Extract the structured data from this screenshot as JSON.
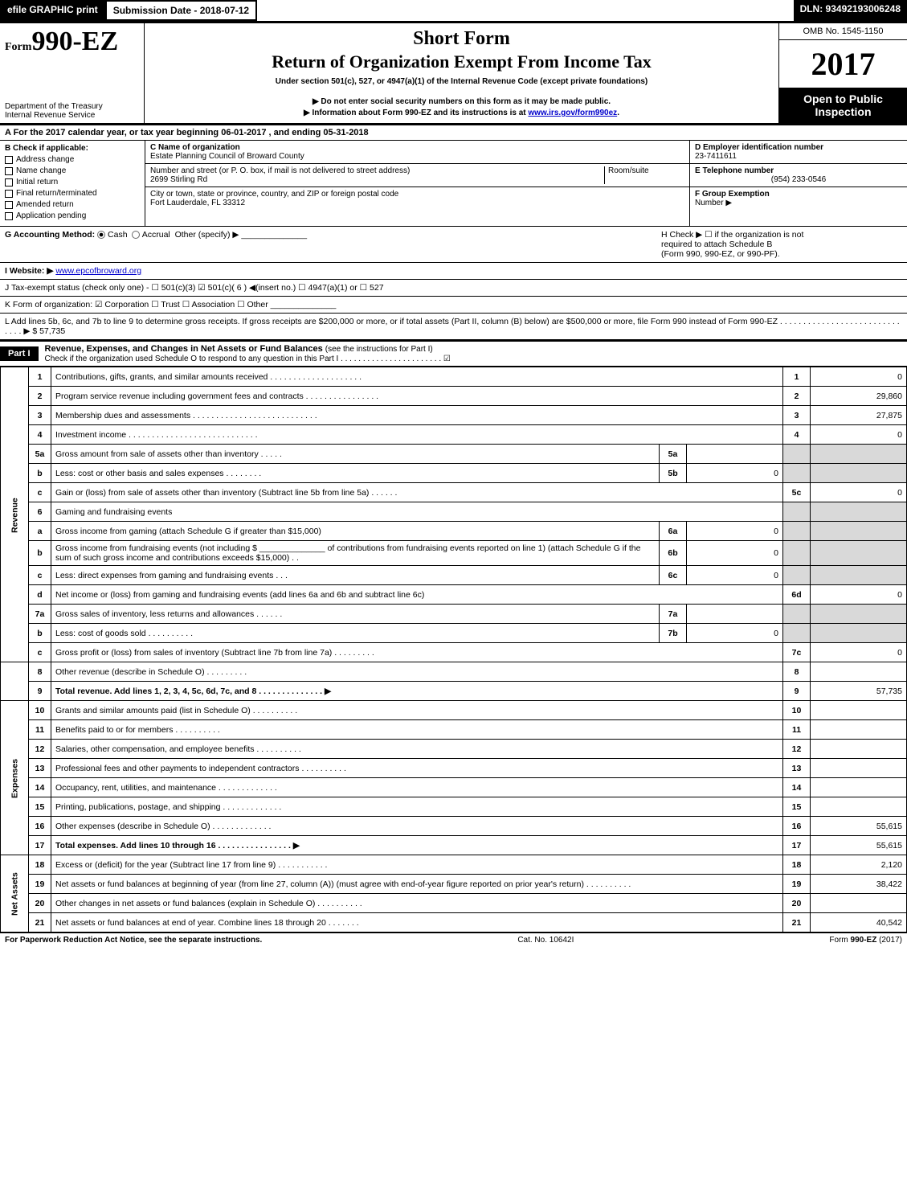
{
  "top": {
    "efile": "efile GRAPHIC print",
    "submission_label": "Submission Date - 2018-07-12",
    "dln": "DLN: 93492193006248"
  },
  "header": {
    "form_prefix": "Form",
    "form_number": "990-EZ",
    "dept1": "Department of the Treasury",
    "dept2": "Internal Revenue Service",
    "title1": "Short Form",
    "title2": "Return of Organization Exempt From Income Tax",
    "subtitle1": "Under section 501(c), 527, or 4947(a)(1) of the Internal Revenue Code (except private foundations)",
    "subtitle2a": "▶ Do not enter social security numbers on this form as it may be made public.",
    "subtitle2b": "▶ Information about Form 990-EZ and its instructions is at ",
    "subtitle2b_link": "www.irs.gov/form990ez",
    "subtitle2b_suffix": ".",
    "omb": "OMB No. 1545-1150",
    "year": "2017",
    "open_public1": "Open to Public",
    "open_public2": "Inspection"
  },
  "rowA": {
    "prefix": "A  For the 2017 calendar year, or tax year beginning ",
    "begin": "06-01-2017",
    "mid": ", and ending ",
    "end": "05-31-2018"
  },
  "B": {
    "title": "B  Check if applicable:",
    "items": [
      "Address change",
      "Name change",
      "Initial return",
      "Final return/terminated",
      "Amended return",
      "Application pending"
    ]
  },
  "C": {
    "name_label": "C Name of organization",
    "name_value": "Estate Planning Council of Broward County",
    "street_label": "Number and street (or P. O. box, if mail is not delivered to street address)",
    "street_value": "2699 Stirling Rd",
    "room_label": "Room/suite",
    "city_label": "City or town, state or province, country, and ZIP or foreign postal code",
    "city_value": "Fort Lauderdale, FL  33312"
  },
  "D": {
    "ein_label": "D Employer identification number",
    "ein_value": "23-7411611",
    "phone_label": "E Telephone number",
    "phone_value": "(954) 233-0546",
    "group_label": "F Group Exemption",
    "group_label2": "Number  ▶"
  },
  "G": {
    "label": "G Accounting Method:",
    "opts": [
      "Cash",
      "Accrual",
      "Other (specify) ▶"
    ],
    "selected": 0
  },
  "H": {
    "line1": "H  Check ▶  ☐  if the organization is not",
    "line2": "required to attach Schedule B",
    "line3": "(Form 990, 990-EZ, or 990-PF)."
  },
  "I": {
    "label": "I Website: ▶",
    "value": "www.epcofbroward.org"
  },
  "J": {
    "text": "J Tax-exempt status (check only one) - ☐ 501(c)(3)  ☑ 501(c)( 6 ) ◀(insert no.)  ☐ 4947(a)(1) or  ☐ 527"
  },
  "K": {
    "text": "K Form of organization:  ☑ Corporation   ☐ Trust   ☐ Association   ☐ Other"
  },
  "L": {
    "text": "L Add lines 5b, 6c, and 7b to line 9 to determine gross receipts. If gross receipts are $200,000 or more, or if total assets (Part II, column (B) below) are $500,000 or more, file Form 990 instead of Form 990-EZ  . . . . . . . . . . . . . . . . . . . . . . . . . . . . . . ▶ $ 57,735"
  },
  "part1": {
    "label": "Part I",
    "title": "Revenue, Expenses, and Changes in Net Assets or Fund Balances ",
    "title_suffix": "(see the instructions for Part I)",
    "check_line": "Check if the organization used Schedule O to respond to any question in this Part I . . . . . . . . . . . . . . . . . . . . . . .  ☑"
  },
  "sections": {
    "revenue": "Revenue",
    "expenses": "Expenses",
    "netassets": "Net Assets"
  },
  "lines": {
    "l1": {
      "no": "1",
      "desc": "Contributions, gifts, grants, and similar amounts received . . . . . . . . . . . . . . . . . . . .",
      "col": "1",
      "val": "0"
    },
    "l2": {
      "no": "2",
      "desc": "Program service revenue including government fees and contracts . . . . . . . . . . . . . . . .",
      "col": "2",
      "val": "29,860"
    },
    "l3": {
      "no": "3",
      "desc": "Membership dues and assessments . . . . . . . . . . . . . . . . . . . . . . . . . . .",
      "col": "3",
      "val": "27,875"
    },
    "l4": {
      "no": "4",
      "desc": "Investment income . . . . . . . . . . . . . . . . . . . . . . . . . . . .",
      "col": "4",
      "val": "0"
    },
    "l5a": {
      "no": "5a",
      "desc": "Gross amount from sale of assets other than inventory . . . . .",
      "mid": "5a",
      "midval": ""
    },
    "l5b": {
      "no": "b",
      "desc": "Less: cost or other basis and sales expenses . . . . . . . .",
      "mid": "5b",
      "midval": "0"
    },
    "l5c": {
      "no": "c",
      "desc": "Gain or (loss) from sale of assets other than inventory (Subtract line 5b from line 5a)     .  .  .  .  .  .",
      "col": "5c",
      "val": "0"
    },
    "l6": {
      "no": "6",
      "desc": "Gaming and fundraising events"
    },
    "l6a": {
      "no": "a",
      "desc": "Gross income from gaming (attach Schedule G if greater than $15,000)",
      "mid": "6a",
      "midval": "0"
    },
    "l6b": {
      "no": "b",
      "desc": "Gross income from fundraising events (not including $ ______________ of contributions from fundraising events reported on line 1) (attach Schedule G if the sum of such gross income and contributions exceeds $15,000)    .  .",
      "mid": "6b",
      "midval": "0"
    },
    "l6c": {
      "no": "c",
      "desc": "Less: direct expenses from gaming and fundraising events     .  .  .",
      "mid": "6c",
      "midval": "0"
    },
    "l6d": {
      "no": "d",
      "desc": "Net income or (loss) from gaming and fundraising events (add lines 6a and 6b and subtract line 6c)",
      "col": "6d",
      "val": "0"
    },
    "l7a": {
      "no": "7a",
      "desc": "Gross sales of inventory, less returns and allowances     .  .  .  .  .  .",
      "mid": "7a",
      "midval": ""
    },
    "l7b": {
      "no": "b",
      "desc": "Less: cost of goods sold          .  .  .  .  .  .  .  .  .  .",
      "mid": "7b",
      "midval": "0"
    },
    "l7c": {
      "no": "c",
      "desc": "Gross profit or (loss) from sales of inventory (Subtract line 7b from line 7a)     .  .  .  .  .  .  .  .  .",
      "col": "7c",
      "val": "0"
    },
    "l8": {
      "no": "8",
      "desc": "Other revenue (describe in Schedule O)          .  .  .  .  .  .  .  .  .",
      "col": "8",
      "val": ""
    },
    "l9": {
      "no": "9",
      "desc": "Total revenue. Add lines 1, 2, 3, 4, 5c, 6d, 7c, and 8     .  .  .  .  .  .  .  .  .  .  .  .  .  .  ▶",
      "col": "9",
      "val": "57,735",
      "bold": true
    },
    "l10": {
      "no": "10",
      "desc": "Grants and similar amounts paid (list in Schedule O)     .  .  .  .  .  .  .  .  .  .",
      "col": "10",
      "val": ""
    },
    "l11": {
      "no": "11",
      "desc": "Benefits paid to or for members     .  .  .  .  .  .  .  .  .  .",
      "col": "11",
      "val": ""
    },
    "l12": {
      "no": "12",
      "desc": "Salaries, other compensation, and employee benefits     .  .  .  .  .  .  .  .  .  .",
      "col": "12",
      "val": ""
    },
    "l13": {
      "no": "13",
      "desc": "Professional fees and other payments to independent contractors     .  .  .  .  .  .  .  .  .  .",
      "col": "13",
      "val": ""
    },
    "l14": {
      "no": "14",
      "desc": "Occupancy, rent, utilities, and maintenance     .  .  .  .  .  .  .  .  .  .  .  .  .",
      "col": "14",
      "val": ""
    },
    "l15": {
      "no": "15",
      "desc": "Printing, publications, postage, and shipping     .  .  .  .  .  .  .  .  .  .  .  .  .",
      "col": "15",
      "val": ""
    },
    "l16": {
      "no": "16",
      "desc": "Other expenses (describe in Schedule O)     .  .  .  .  .  .  .  .  .  .  .  .  .",
      "col": "16",
      "val": "55,615"
    },
    "l17": {
      "no": "17",
      "desc": "Total expenses. Add lines 10 through 16     .  .  .  .  .  .  .  .  .  .  .  .  .  .  .  .  ▶",
      "col": "17",
      "val": "55,615",
      "bold": true
    },
    "l18": {
      "no": "18",
      "desc": "Excess or (deficit) for the year (Subtract line 17 from line 9)     .  .  .  .  .  .  .  .  .  .  .",
      "col": "18",
      "val": "2,120"
    },
    "l19": {
      "no": "19",
      "desc": "Net assets or fund balances at beginning of year (from line 27, column (A)) (must agree with end-of-year figure reported on prior year's return)     .  .  .  .  .  .  .  .  .  .",
      "col": "19",
      "val": "38,422"
    },
    "l20": {
      "no": "20",
      "desc": "Other changes in net assets or fund balances (explain in Schedule O)     .  .  .  .  .  .  .  .  .  .",
      "col": "20",
      "val": ""
    },
    "l21": {
      "no": "21",
      "desc": "Net assets or fund balances at end of year. Combine lines 18 through 20     .  .  .  .  .  .  .",
      "col": "21",
      "val": "40,542"
    }
  },
  "footer": {
    "left": "For Paperwork Reduction Act Notice, see the separate instructions.",
    "mid": "Cat. No. 10642I",
    "right": "Form 990-EZ (2017)"
  },
  "colors": {
    "black": "#000000",
    "white": "#ffffff",
    "shade": "#d9d9d9",
    "link": "#0000cc"
  }
}
